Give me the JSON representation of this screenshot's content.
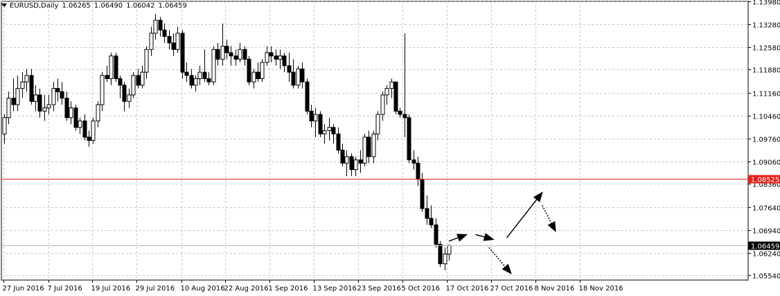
{
  "header": {
    "symbol_tf": "EURUSD,Daily",
    "open": "1.06265",
    "high": "1.06490",
    "low": "1.06042",
    "close": "1.06459"
  },
  "chart_data": {
    "type": "candlestick",
    "symbol": "EURUSD",
    "timeframe": "Daily",
    "y_range": [
      1.054,
      1.1398
    ],
    "y_ticks": [
      "1.13980",
      "1.13280",
      "1.12580",
      "1.11880",
      "1.11160",
      "1.10460",
      "1.09760",
      "1.09060",
      "1.08360",
      "1.07640",
      "1.06940",
      "1.06240",
      "1.05540"
    ],
    "x_labels": [
      "27 Jun 2016",
      "7 Jul 2016",
      "19 Jul 2016",
      "29 Jul 2016",
      "10 Aug 2016",
      "22 Aug 2016",
      "1 Sep 2016",
      "13 Sep 2016",
      "23 Sep 2016",
      "5 Oct 2016",
      "17 Oct 2016",
      "27 Oct 2016",
      "8 Nov 2016",
      "18 Nov 2016"
    ],
    "horizontal_line": {
      "value": "1.08525",
      "color": "#e8201a"
    },
    "bid_line": {
      "value": "1.06459"
    },
    "colors": {
      "bull": "#ffffff",
      "bear": "#000000",
      "grid": "#c8c8c8",
      "axis": "#000000"
    },
    "candles": [
      [
        1.099,
        1.105,
        1.096,
        1.104
      ],
      [
        1.104,
        1.112,
        1.102,
        1.11
      ],
      [
        1.11,
        1.116,
        1.106,
        1.108
      ],
      [
        1.108,
        1.117,
        1.106,
        1.113
      ],
      [
        1.113,
        1.118,
        1.11,
        1.115
      ],
      [
        1.115,
        1.119,
        1.112,
        1.117
      ],
      [
        1.117,
        1.119,
        1.108,
        1.109
      ],
      [
        1.109,
        1.114,
        1.106,
        1.111
      ],
      [
        1.111,
        1.113,
        1.104,
        1.106
      ],
      [
        1.106,
        1.111,
        1.103,
        1.107
      ],
      [
        1.107,
        1.111,
        1.105,
        1.108
      ],
      [
        1.108,
        1.115,
        1.106,
        1.113
      ],
      [
        1.113,
        1.116,
        1.109,
        1.112
      ],
      [
        1.112,
        1.115,
        1.108,
        1.11
      ],
      [
        1.11,
        1.112,
        1.103,
        1.104
      ],
      [
        1.104,
        1.109,
        1.102,
        1.107
      ],
      [
        1.107,
        1.108,
        1.1,
        1.101
      ],
      [
        1.101,
        1.104,
        1.099,
        1.103
      ],
      [
        1.103,
        1.105,
        1.097,
        1.098
      ],
      [
        1.098,
        1.1,
        1.095,
        1.097
      ],
      [
        1.097,
        1.104,
        1.096,
        1.103
      ],
      [
        1.103,
        1.109,
        1.101,
        1.108
      ],
      [
        1.108,
        1.118,
        1.106,
        1.117
      ],
      [
        1.117,
        1.12,
        1.115,
        1.116
      ],
      [
        1.116,
        1.124,
        1.114,
        1.123
      ],
      [
        1.123,
        1.124,
        1.115,
        1.116
      ],
      [
        1.116,
        1.117,
        1.11,
        1.114
      ],
      [
        1.114,
        1.115,
        1.106,
        1.109
      ],
      [
        1.109,
        1.113,
        1.107,
        1.111
      ],
      [
        1.111,
        1.118,
        1.11,
        1.117
      ],
      [
        1.117,
        1.119,
        1.113,
        1.114
      ],
      [
        1.114,
        1.12,
        1.113,
        1.118
      ],
      [
        1.118,
        1.126,
        1.116,
        1.125
      ],
      [
        1.125,
        1.132,
        1.123,
        1.13
      ],
      [
        1.13,
        1.136,
        1.128,
        1.134
      ],
      [
        1.134,
        1.135,
        1.129,
        1.131
      ],
      [
        1.131,
        1.133,
        1.127,
        1.129
      ],
      [
        1.129,
        1.131,
        1.125,
        1.127
      ],
      [
        1.127,
        1.13,
        1.123,
        1.125
      ],
      [
        1.125,
        1.132,
        1.124,
        1.13
      ],
      [
        1.13,
        1.131,
        1.116,
        1.118
      ],
      [
        1.118,
        1.121,
        1.115,
        1.117
      ],
      [
        1.117,
        1.119,
        1.113,
        1.114
      ],
      [
        1.114,
        1.117,
        1.112,
        1.116
      ],
      [
        1.116,
        1.12,
        1.114,
        1.118
      ],
      [
        1.118,
        1.125,
        1.115,
        1.116
      ],
      [
        1.116,
        1.118,
        1.114,
        1.115
      ],
      [
        1.115,
        1.126,
        1.114,
        1.125
      ],
      [
        1.125,
        1.127,
        1.12,
        1.122
      ],
      [
        1.122,
        1.133,
        1.12,
        1.126
      ],
      [
        1.126,
        1.128,
        1.122,
        1.124
      ],
      [
        1.124,
        1.126,
        1.12,
        1.123
      ],
      [
        1.123,
        1.125,
        1.12,
        1.122
      ],
      [
        1.122,
        1.127,
        1.121,
        1.125
      ],
      [
        1.125,
        1.126,
        1.12,
        1.122
      ],
      [
        1.122,
        1.123,
        1.114,
        1.115
      ],
      [
        1.115,
        1.119,
        1.113,
        1.118
      ],
      [
        1.118,
        1.121,
        1.115,
        1.116
      ],
      [
        1.116,
        1.122,
        1.115,
        1.121
      ],
      [
        1.121,
        1.126,
        1.12,
        1.124
      ],
      [
        1.124,
        1.126,
        1.121,
        1.123
      ],
      [
        1.123,
        1.125,
        1.12,
        1.122
      ],
      [
        1.122,
        1.125,
        1.119,
        1.123
      ],
      [
        1.123,
        1.124,
        1.118,
        1.12
      ],
      [
        1.12,
        1.124,
        1.115,
        1.118
      ],
      [
        1.118,
        1.122,
        1.113,
        1.114
      ],
      [
        1.114,
        1.12,
        1.113,
        1.119
      ],
      [
        1.119,
        1.121,
        1.113,
        1.115
      ],
      [
        1.115,
        1.116,
        1.105,
        1.106
      ],
      [
        1.106,
        1.108,
        1.101,
        1.103
      ],
      [
        1.103,
        1.107,
        1.098,
        1.105
      ],
      [
        1.105,
        1.106,
        1.098,
        1.099
      ],
      [
        1.099,
        1.102,
        1.096,
        1.1
      ],
      [
        1.1,
        1.104,
        1.097,
        1.101
      ],
      [
        1.101,
        1.102,
        1.096,
        1.099
      ],
      [
        1.099,
        1.101,
        1.093,
        1.094
      ],
      [
        1.094,
        1.096,
        1.089,
        1.09
      ],
      [
        1.09,
        1.094,
        1.086,
        1.092
      ],
      [
        1.092,
        1.093,
        1.086,
        1.088
      ],
      [
        1.088,
        1.092,
        1.086,
        1.091
      ],
      [
        1.091,
        1.094,
        1.087,
        1.09
      ],
      [
        1.09,
        1.099,
        1.089,
        1.098
      ],
      [
        1.098,
        1.1,
        1.09,
        1.092
      ],
      [
        1.092,
        1.1,
        1.09,
        1.099
      ],
      [
        1.099,
        1.106,
        1.097,
        1.105
      ],
      [
        1.105,
        1.112,
        1.103,
        1.111
      ],
      [
        1.111,
        1.114,
        1.108,
        1.113
      ],
      [
        1.113,
        1.116,
        1.11,
        1.115
      ],
      [
        1.115,
        1.115,
        1.105,
        1.106
      ],
      [
        1.106,
        1.107,
        1.104,
        1.105
      ],
      [
        1.105,
        1.13,
        1.098,
        1.104
      ],
      [
        1.104,
        1.105,
        1.09,
        1.091
      ],
      [
        1.091,
        1.094,
        1.088,
        1.09
      ],
      [
        1.09,
        1.092,
        1.083,
        1.085
      ],
      [
        1.085,
        1.087,
        1.075,
        1.076
      ],
      [
        1.076,
        1.08,
        1.071,
        1.073
      ],
      [
        1.073,
        1.077,
        1.07,
        1.071
      ],
      [
        1.071,
        1.073,
        1.064,
        1.065
      ],
      [
        1.065,
        1.066,
        1.058,
        1.059
      ],
      [
        1.059,
        1.064,
        1.057,
        1.062
      ],
      [
        1.062,
        1.065,
        1.06,
        1.0646
      ]
    ],
    "annotations": [
      {
        "style": "solid",
        "from": [
          100,
          1.066
        ],
        "to": [
          104,
          1.068
        ]
      },
      {
        "style": "solid",
        "from": [
          106,
          1.068
        ],
        "to": [
          110,
          1.0665
        ]
      },
      {
        "style": "dotted",
        "from": [
          109,
          1.064
        ],
        "to": [
          114,
          1.056
        ]
      },
      {
        "style": "solid",
        "from": [
          113,
          1.067
        ],
        "to": [
          121,
          1.081
        ]
      },
      {
        "style": "dotted",
        "from": [
          121,
          1.077
        ],
        "to": [
          124,
          1.069
        ]
      }
    ]
  }
}
